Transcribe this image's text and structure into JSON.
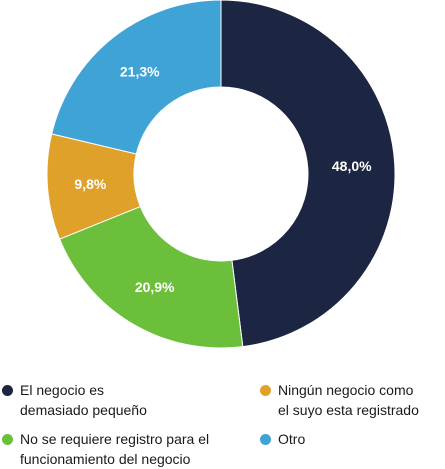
{
  "chart_data": {
    "type": "pie",
    "variant": "donut",
    "slices": [
      {
        "label": "El negocio es\ndemasiado pequeño",
        "value": 48.0,
        "display": "48,0%",
        "color": "#1c2541"
      },
      {
        "label": "No se requiere registro para el\nfuncionamiento del negocio",
        "value": 20.9,
        "display": "20,9%",
        "color": "#6cbf3a"
      },
      {
        "label": "Ningún negocio como\nel suyo esta registrado",
        "value": 9.8,
        "display": "9,8%",
        "color": "#e0a12a"
      },
      {
        "label": "Otro",
        "value": 21.3,
        "display": "21,3%",
        "color": "#3fa3d6"
      }
    ],
    "start_angle_deg": 0,
    "direction": "clockwise",
    "legend_position": "bottom",
    "legend_order": [
      0,
      2,
      1,
      3
    ]
  }
}
